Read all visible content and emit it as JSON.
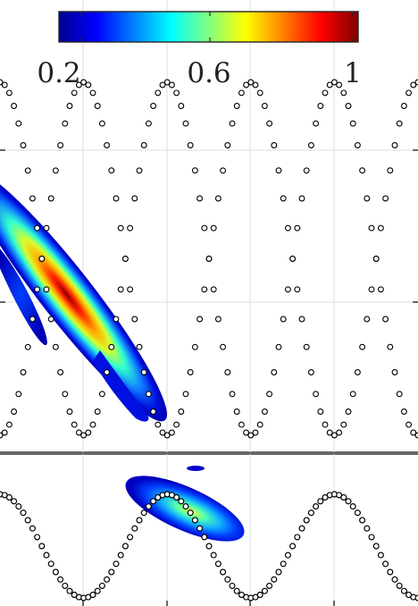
{
  "chart_data": {
    "type": "heatmap",
    "colormap": "jet",
    "colorbar": {
      "orientation": "horizontal",
      "placement": "top",
      "range": [
        0.1,
        1.0
      ],
      "ticks": [
        0.2,
        0.6,
        1.0
      ],
      "tick_labels": [
        "0.2",
        "0.6",
        "1"
      ]
    },
    "grid": true,
    "panels": [
      {
        "panel": "top",
        "xlim": [
          0,
          1
        ],
        "ylim": [
          -1.1,
          1.1
        ],
        "x_gridlines": [
          0.2,
          0.4,
          0.6,
          0.8
        ],
        "y_gridlines": [
          0
        ],
        "markers": {
          "style": "open circle",
          "curves": [
            {
              "family": "cos",
              "amplitude": 1,
              "periods_in_xlim": 2.5,
              "phase_x": 0.2
            },
            {
              "family": "cos",
              "amplitude": 1,
              "periods_in_xlim": 2.5,
              "phase_x": 0.4
            }
          ]
        },
        "intensity_blobs": [
          {
            "shape": "elongated diagonal ridge",
            "x_range": [
              0.0,
              0.35
            ],
            "y_range": [
              -0.65,
              0.8
            ],
            "peak_value": 1.0
          },
          {
            "shape": "thin side streak",
            "x_range": [
              0.0,
              0.27
            ],
            "y_range": [
              0.0,
              0.8
            ],
            "peak_value": 0.2
          },
          {
            "shape": "thin side streak",
            "x_range": [
              0.0,
              0.1
            ],
            "y_range": [
              -0.15,
              0.35
            ],
            "peak_value": 0.2
          }
        ]
      },
      {
        "panel": "bottom",
        "xlim": [
          0,
          1
        ],
        "ylim": [
          -1.1,
          1.1
        ],
        "x_gridlines": [
          0.2,
          0.4,
          0.6,
          0.8
        ],
        "markers": {
          "style": "open circle",
          "curves": [
            {
              "family": "cos",
              "amplitude": 1,
              "periods_in_xlim": 2.5,
              "phase_x": 0.0
            },
            {
              "family": "cos",
              "amplitude": 1,
              "periods_in_xlim": 2.5,
              "phase_x": 0.4
            }
          ]
        },
        "intensity_blobs": [
          {
            "shape": "elongated diagonal patch",
            "x_range": [
              0.3,
              0.58
            ],
            "y_range": [
              -0.45,
              0.6
            ],
            "peak_value": 0.45
          },
          {
            "shape": "small fleck",
            "x_range": [
              0.44,
              0.49
            ],
            "y_range": [
              0.8,
              0.9
            ],
            "peak_value": 0.12
          }
        ]
      }
    ]
  }
}
